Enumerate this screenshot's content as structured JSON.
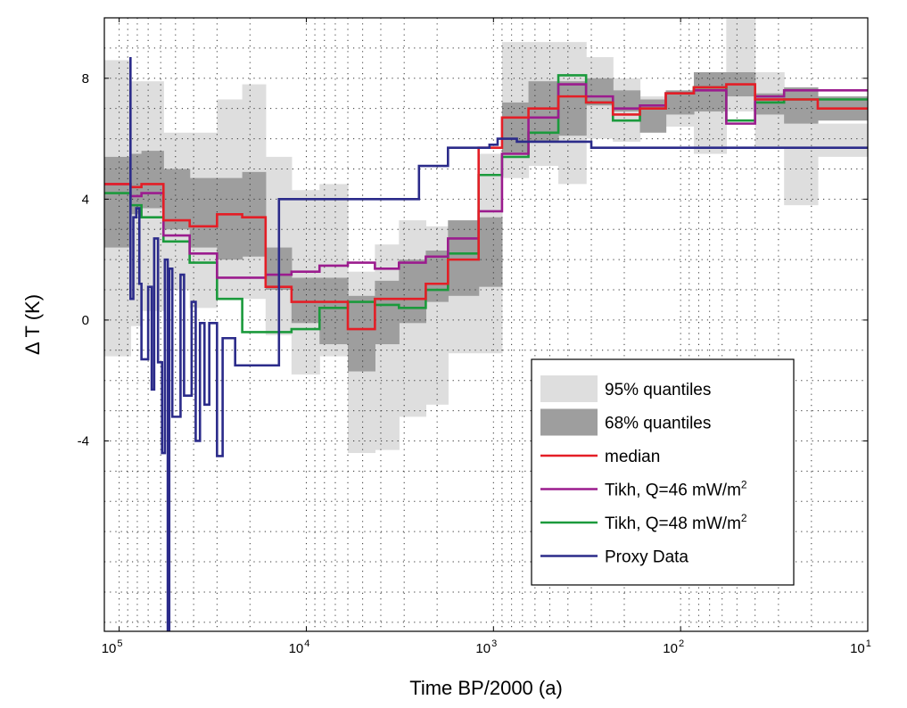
{
  "chart_data": {
    "type": "line",
    "x_scale": "log-reversed",
    "xlabel": "Time BP/2000 (a)",
    "ylabel": "Δ T (K)",
    "xlim": [
      120000,
      10
    ],
    "ylim": [
      -10.3,
      10
    ],
    "grid": true,
    "legend_position": "lower-right",
    "x_ticks": [
      {
        "value": 100000,
        "base": "10",
        "exp": "5"
      },
      {
        "value": 10000,
        "base": "10",
        "exp": "4"
      },
      {
        "value": 1000,
        "base": "10",
        "exp": "3"
      },
      {
        "value": 100,
        "base": "10",
        "exp": "2"
      },
      {
        "value": 10,
        "base": "10",
        "exp": "1"
      }
    ],
    "y_ticks": [
      {
        "value": 8,
        "label": "8"
      },
      {
        "value": 4,
        "label": "4"
      },
      {
        "value": 0,
        "label": "0"
      },
      {
        "value": -4,
        "label": "-4"
      }
    ],
    "x_edges": [
      120000,
      87000,
      76000,
      58000,
      42000,
      30000,
      22000,
      16500,
      12000,
      8500,
      6000,
      4300,
      3200,
      2300,
      1750,
      1200,
      900,
      650,
      450,
      320,
      230,
      165,
      120,
      85,
      57,
      40,
      28,
      18.5,
      10
    ],
    "quantile_95": {
      "lower": [
        -1.2,
        -0.2,
        0.3,
        1.0,
        0.4,
        0.7,
        0.7,
        -0.5,
        -1.8,
        -1.2,
        -4.4,
        -4.3,
        -3.2,
        -2.8,
        -1.1,
        -1.1,
        4.7,
        5.1,
        4.5,
        6.0,
        5.9,
        6.7,
        6.4,
        5.5,
        6.9,
        5.7,
        3.8,
        5.4
      ],
      "upper": [
        8.6,
        7.9,
        7.9,
        6.2,
        6.2,
        7.3,
        7.8,
        5.4,
        4.3,
        4.5,
        1.6,
        2.5,
        3.3,
        3.1,
        2.8,
        5.5,
        9.2,
        9.2,
        9.2,
        8.7,
        8.0,
        7.4,
        7.0,
        7.6,
        10.0,
        8.2,
        7.1,
        6.5
      ]
    },
    "quantile_68": {
      "lower": [
        2.4,
        3.5,
        3.7,
        3.0,
        2.4,
        2.0,
        2.1,
        1.0,
        -0.1,
        -0.8,
        -1.7,
        -0.8,
        -0.1,
        0.6,
        0.8,
        1.1,
        5.5,
        5.9,
        6.1,
        7.1,
        6.9,
        6.2,
        6.8,
        6.9,
        7.4,
        6.8,
        6.5,
        6.6
      ],
      "upper": [
        5.4,
        5.5,
        5.6,
        5.0,
        4.7,
        4.7,
        4.9,
        2.4,
        1.4,
        1.4,
        0.8,
        1.3,
        2.0,
        2.3,
        3.3,
        3.4,
        7.2,
        7.9,
        7.9,
        8.0,
        7.6,
        7.3,
        7.6,
        8.2,
        8.2,
        7.5,
        7.7,
        7.4
      ]
    },
    "series": [
      {
        "name": "median",
        "color": "#e41e26",
        "values": [
          4.5,
          4.4,
          4.5,
          3.3,
          3.1,
          3.5,
          3.4,
          1.1,
          0.6,
          0.6,
          -0.3,
          0.7,
          0.7,
          1.2,
          2.0,
          5.7,
          6.7,
          7.0,
          7.4,
          7.2,
          6.8,
          7.0,
          7.5,
          7.7,
          7.8,
          7.3,
          7.3,
          7.0
        ]
      },
      {
        "name": "Tikh, Q=46 mW/m2",
        "color": "#9b1c8e",
        "values": [
          4.5,
          4.1,
          4.2,
          2.8,
          2.2,
          1.4,
          1.4,
          1.5,
          1.6,
          1.8,
          1.9,
          1.7,
          1.9,
          2.1,
          2.7,
          3.6,
          5.5,
          6.7,
          7.8,
          7.4,
          7.0,
          7.1,
          7.5,
          7.6,
          6.5,
          7.4,
          7.6,
          7.6
        ]
      },
      {
        "name": "Tikh, Q=48 mW/m2",
        "color": "#1b9a3c",
        "values": [
          4.2,
          3.8,
          3.4,
          2.6,
          1.9,
          0.7,
          -0.4,
          -0.4,
          -0.3,
          0.4,
          0.6,
          0.5,
          0.4,
          1.0,
          2.2,
          4.8,
          5.4,
          6.2,
          8.1,
          7.2,
          6.6,
          7.0,
          7.5,
          7.7,
          6.6,
          7.2,
          7.3,
          7.3
        ]
      },
      {
        "name": "Proxy Data",
        "color": "#2b2b8a",
        "points": [
          [
            87000,
            8.7
          ],
          [
            87000,
            0.7
          ],
          [
            84000,
            0.7
          ],
          [
            84000,
            3.4
          ],
          [
            81000,
            3.4
          ],
          [
            81000,
            3.7
          ],
          [
            78000,
            3.7
          ],
          [
            78000,
            1.2
          ],
          [
            76000,
            1.2
          ],
          [
            76000,
            -1.3
          ],
          [
            70000,
            -1.3
          ],
          [
            70000,
            1.1
          ],
          [
            67000,
            1.1
          ],
          [
            67000,
            -2.3
          ],
          [
            65000,
            -2.3
          ],
          [
            65000,
            2.7
          ],
          [
            62000,
            2.7
          ],
          [
            62000,
            -1.4
          ],
          [
            59000,
            -1.4
          ],
          [
            59000,
            -4.4
          ],
          [
            57000,
            -4.4
          ],
          [
            57000,
            2.0
          ],
          [
            55000,
            2.0
          ],
          [
            55000,
            -10.5
          ],
          [
            54000,
            -10.5
          ],
          [
            54000,
            1.7
          ],
          [
            52000,
            1.7
          ],
          [
            52000,
            -3.2
          ],
          [
            47000,
            -3.2
          ],
          [
            47000,
            1.5
          ],
          [
            45000,
            1.5
          ],
          [
            45000,
            -2.5
          ],
          [
            41000,
            -2.5
          ],
          [
            41000,
            0.6
          ],
          [
            39000,
            0.6
          ],
          [
            39000,
            -4.0
          ],
          [
            37000,
            -4.0
          ],
          [
            37000,
            -0.1
          ],
          [
            35000,
            -0.1
          ],
          [
            35000,
            -2.8
          ],
          [
            33000,
            -2.8
          ],
          [
            33000,
            -0.1
          ],
          [
            30000,
            -0.1
          ],
          [
            30000,
            -4.5
          ],
          [
            28000,
            -4.5
          ],
          [
            28000,
            -0.6
          ],
          [
            24000,
            -0.6
          ],
          [
            24000,
            -1.5
          ],
          [
            14000,
            -1.5
          ],
          [
            14000,
            4.0
          ],
          [
            2500,
            4.0
          ],
          [
            2500,
            5.1
          ],
          [
            1750,
            5.1
          ],
          [
            1750,
            5.7
          ],
          [
            1050,
            5.7
          ],
          [
            1050,
            5.8
          ],
          [
            950,
            5.8
          ],
          [
            950,
            6.0
          ],
          [
            750,
            6.0
          ],
          [
            750,
            5.9
          ],
          [
            300,
            5.9
          ],
          [
            300,
            5.7
          ],
          [
            10,
            5.7
          ]
        ]
      }
    ],
    "legend": [
      {
        "label": "95% quantiles",
        "kind": "patch",
        "color": "#dedede",
        "sup": ""
      },
      {
        "label": "68% quantiles",
        "kind": "patch",
        "color": "#9e9e9e",
        "sup": ""
      },
      {
        "label": "median",
        "kind": "line",
        "color": "#e41e26",
        "sup": ""
      },
      {
        "label": "Tikh, Q=46 mW/m",
        "kind": "line",
        "color": "#9b1c8e",
        "sup": "2"
      },
      {
        "label": "Tikh, Q=48 mW/m",
        "kind": "line",
        "color": "#1b9a3c",
        "sup": "2"
      },
      {
        "label": "Proxy Data",
        "kind": "line",
        "color": "#2b2b8a",
        "sup": ""
      }
    ]
  }
}
